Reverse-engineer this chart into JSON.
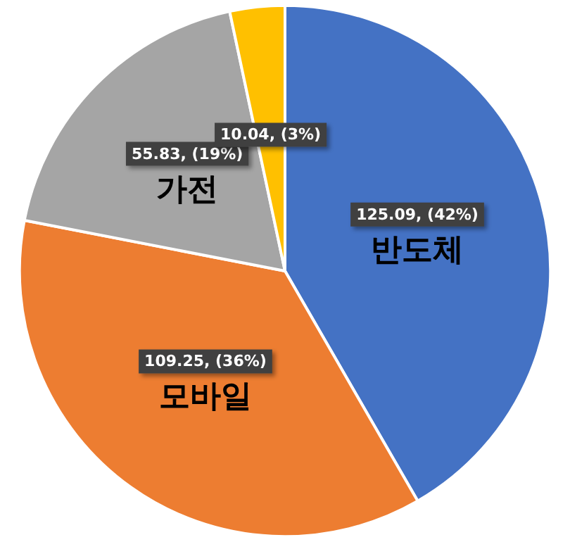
{
  "chart_data": {
    "type": "pie",
    "categories": [
      "반도체",
      "모바일",
      "가전",
      null
    ],
    "values": [
      125.09,
      109.25,
      55.83,
      10.04
    ],
    "colors": [
      "#4472c4",
      "#ed7d31",
      "#a5a5a5",
      "#ffc000"
    ],
    "value_labels": [
      "125.09, (42%)",
      "109.25, (36%)",
      "55.83, (19%)",
      "10.04, (3%)"
    ],
    "legend": false
  }
}
